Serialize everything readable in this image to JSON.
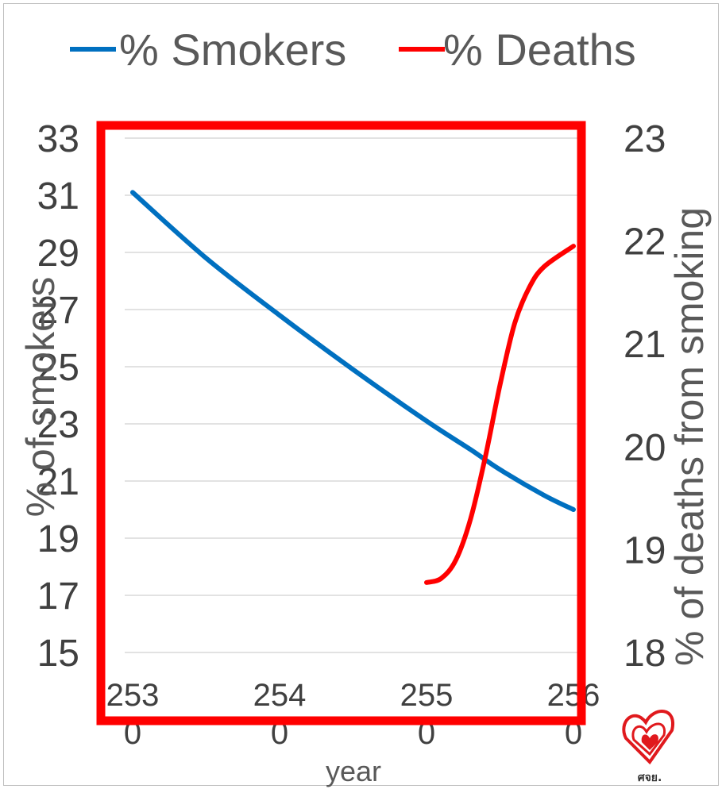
{
  "chart_data": {
    "type": "line",
    "title": "",
    "legend": {
      "placement": "top",
      "entries": [
        "% Smokers",
        "% Deaths"
      ]
    },
    "x": [
      2530,
      2540,
      2550,
      2560
    ],
    "x_tick_labels": [
      [
        "253",
        "0"
      ],
      [
        "254",
        "0"
      ],
      [
        "255",
        "0"
      ],
      [
        "256",
        "0"
      ]
    ],
    "xlabel": "year",
    "y_left": {
      "label": "% of smokers",
      "ylim": [
        15,
        33
      ],
      "ticks": [
        "15",
        "17",
        "19",
        "21",
        "23",
        "25",
        "27",
        "29",
        "31",
        "33"
      ]
    },
    "y_right": {
      "label": "% of deaths from smoking",
      "ylim": [
        18,
        23
      ],
      "ticks": [
        "18",
        "19",
        "20",
        "21",
        "22",
        "23"
      ]
    },
    "grid": true,
    "series": [
      {
        "name": "% Smokers",
        "axis": "left",
        "color": "#0070C0",
        "points": [
          [
            2530,
            31.1
          ],
          [
            2535,
            28.8
          ],
          [
            2540,
            26.8
          ],
          [
            2545,
            24.9
          ],
          [
            2550,
            23.1
          ],
          [
            2553,
            22.1
          ],
          [
            2555,
            21.4
          ],
          [
            2558,
            20.5
          ],
          [
            2560,
            20.0
          ]
        ]
      },
      {
        "name": "% Deaths",
        "axis": "right",
        "color": "#FF0000",
        "points": [
          [
            2550,
            18.68
          ],
          [
            2551,
            18.72
          ],
          [
            2552,
            18.9
          ],
          [
            2553,
            19.3
          ],
          [
            2554,
            19.9
          ],
          [
            2555,
            20.6
          ],
          [
            2556,
            21.2
          ],
          [
            2557,
            21.55
          ],
          [
            2558,
            21.75
          ],
          [
            2560,
            21.95
          ]
        ]
      }
    ],
    "highlight_box_color": "#FF0000"
  },
  "logo": {
    "name": "thai-health-logo",
    "text": "ศจย."
  }
}
